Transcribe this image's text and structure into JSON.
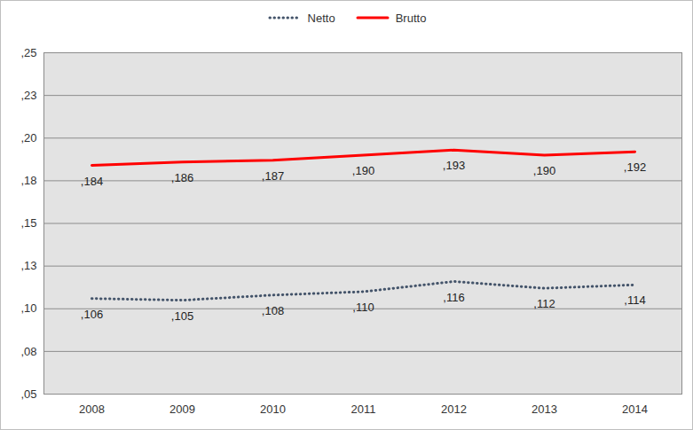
{
  "chart_data": {
    "type": "line",
    "categories": [
      "2008",
      "2009",
      "2010",
      "2011",
      "2012",
      "2013",
      "2014"
    ],
    "series": [
      {
        "name": "Netto",
        "color": "#44546a",
        "line_style": "dotted",
        "values": [
          0.106,
          0.105,
          0.108,
          0.11,
          0.116,
          0.112,
          0.114
        ],
        "value_labels": [
          ",106",
          ",105",
          ",108",
          ",110",
          ",116",
          ",112",
          ",114"
        ]
      },
      {
        "name": "Brutto",
        "color": "#ff0000",
        "line_style": "solid",
        "values": [
          0.184,
          0.186,
          0.187,
          0.19,
          0.193,
          0.19,
          0.192
        ],
        "value_labels": [
          ",184",
          ",186",
          ",187",
          ",190",
          ",193",
          ",190",
          ",192"
        ]
      }
    ],
    "ylim": [
      0.05,
      0.25
    ],
    "yticks": [
      {
        "value": 0.05,
        "label": ",05"
      },
      {
        "value": 0.075,
        "label": ",08"
      },
      {
        "value": 0.1,
        "label": ",10"
      },
      {
        "value": 0.125,
        "label": ",13"
      },
      {
        "value": 0.15,
        "label": ",15"
      },
      {
        "value": 0.175,
        "label": ",18"
      },
      {
        "value": 0.2,
        "label": ",20"
      },
      {
        "value": 0.225,
        "label": ",23"
      },
      {
        "value": 0.25,
        "label": ",25"
      }
    ],
    "grid": true,
    "legend": "top",
    "data_labels": true
  }
}
